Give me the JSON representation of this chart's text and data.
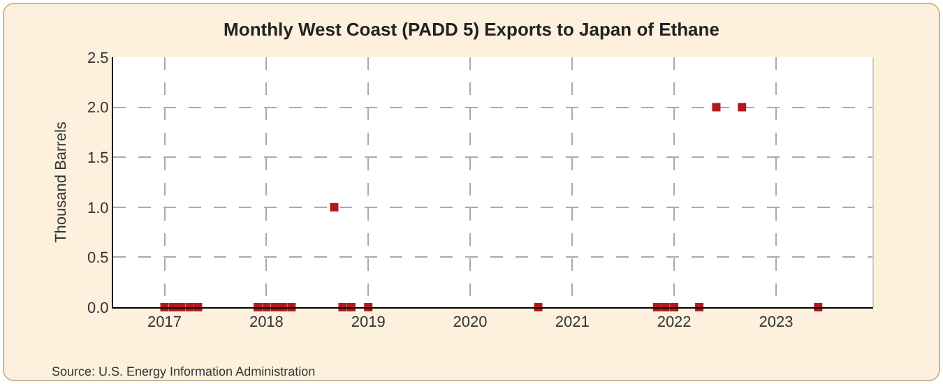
{
  "chart_data": {
    "type": "scatter",
    "title": "Monthly West Coast (PADD 5) Exports to Japan of Ethane",
    "ylabel": "Thousand Barrels",
    "x": [
      "2017-01",
      "2017-02",
      "2017-03",
      "2017-04",
      "2017-05",
      "2017-12",
      "2018-01",
      "2018-02",
      "2018-03",
      "2018-04",
      "2018-09",
      "2018-10",
      "2018-11",
      "2019-01",
      "2020-09",
      "2021-11",
      "2021-12",
      "2022-01",
      "2022-04",
      "2022-06",
      "2022-09",
      "2023-06"
    ],
    "series": [
      {
        "color": "#b0191e",
        "values": [
          0,
          0,
          0,
          0,
          0,
          0,
          0,
          0,
          0,
          0,
          1.0,
          0,
          0,
          0,
          0,
          0,
          0,
          0,
          0,
          2.0,
          2.0,
          0
        ]
      }
    ],
    "xlim": [
      "2016-07-01",
      "2023-12-15"
    ],
    "xticks": [
      {
        "value": "2017-01",
        "label": "2017"
      },
      {
        "value": "2018-01",
        "label": "2018"
      },
      {
        "value": "2019-01",
        "label": "2019"
      },
      {
        "value": "2020-01",
        "label": "2020"
      },
      {
        "value": "2021-01",
        "label": "2021"
      },
      {
        "value": "2022-01",
        "label": "2022"
      },
      {
        "value": "2023-01",
        "label": "2023"
      }
    ],
    "ylim": [
      0,
      2.5
    ],
    "yticks": [
      {
        "value": 0,
        "label": "0.0"
      },
      {
        "value": 0.5,
        "label": "0.5"
      },
      {
        "value": 1,
        "label": "1.0"
      },
      {
        "value": 1.5,
        "label": "1.5"
      },
      {
        "value": 2,
        "label": "2.0"
      },
      {
        "value": 2.5,
        "label": "2.5"
      }
    ],
    "grid": true,
    "marker": "square",
    "annotations": [
      "Source: U.S. Energy Information Administration"
    ]
  }
}
